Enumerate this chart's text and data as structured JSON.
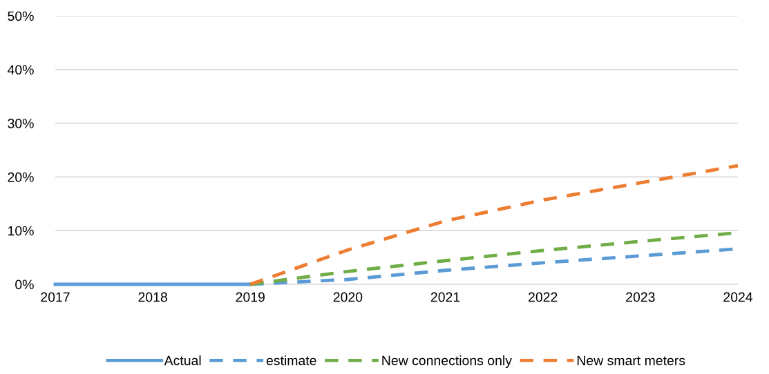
{
  "chart_data": {
    "type": "line",
    "series": [
      {
        "name": "Actual",
        "color": "#5b9bd5",
        "line_style": "solid",
        "x": [
          2017,
          2018,
          2019
        ],
        "values": [
          0,
          0,
          0
        ]
      },
      {
        "name": "estimate",
        "color": "#5b9bd5",
        "line_style": "dashed",
        "x": [
          2019,
          2020,
          2021,
          2022,
          2023,
          2024
        ],
        "values": [
          0,
          0.9,
          2.6,
          4.0,
          5.3,
          6.6
        ]
      },
      {
        "name": "New connections only",
        "color": "#70ad47",
        "line_style": "dashed",
        "x": [
          2019,
          2020,
          2021,
          2022,
          2023,
          2024
        ],
        "values": [
          0,
          2.4,
          4.4,
          6.3,
          8.0,
          9.6
        ]
      },
      {
        "name": "New smart meters",
        "color": "#ed7d31",
        "line_style": "dashed",
        "x": [
          2019,
          2020,
          2021,
          2022,
          2023,
          2024
        ],
        "values": [
          0,
          6.4,
          11.8,
          15.7,
          18.9,
          22.1
        ]
      }
    ],
    "xlim": [
      2017,
      2024
    ],
    "xticks": [
      2017,
      2018,
      2019,
      2020,
      2021,
      2022,
      2023,
      2024
    ],
    "ylim": [
      0,
      50
    ],
    "yticks": [
      {
        "value": 0,
        "label": "0%"
      },
      {
        "value": 10,
        "label": "10%"
      },
      {
        "value": 20,
        "label": "20%"
      },
      {
        "value": 30,
        "label": "30%"
      },
      {
        "value": 40,
        "label": "40%"
      },
      {
        "value": 50,
        "label": "50%"
      }
    ],
    "grid": "y",
    "legend": "bottom",
    "marker": "none"
  }
}
